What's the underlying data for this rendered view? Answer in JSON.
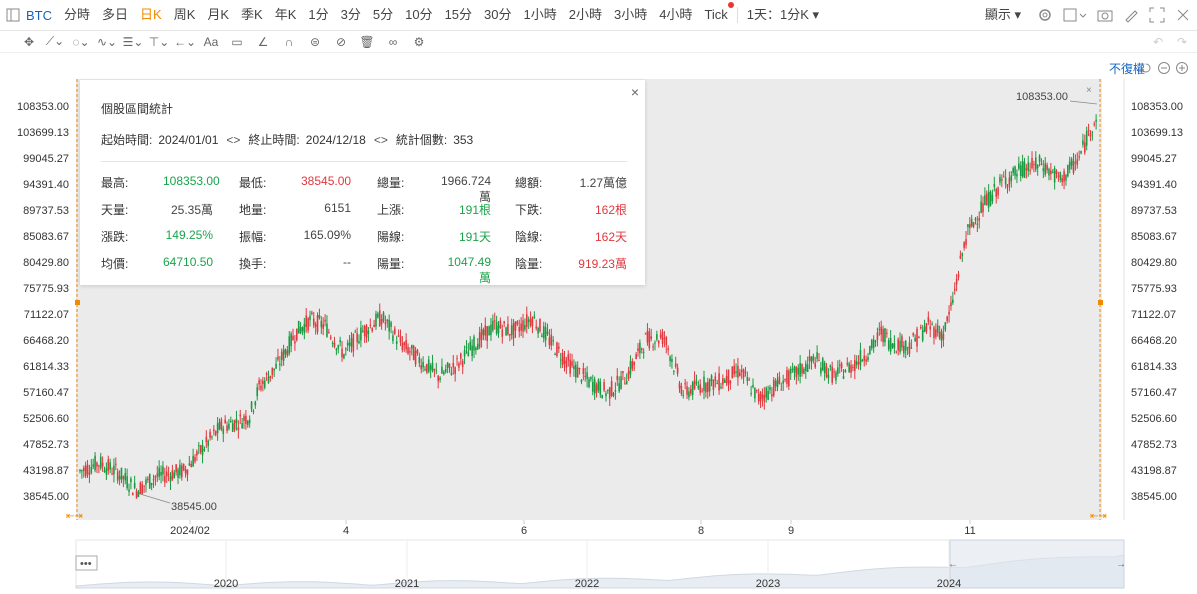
{
  "toolbar": {
    "symbol": "BTC",
    "timeframes": [
      "分時",
      "多日",
      "日K",
      "周K",
      "月K",
      "季K",
      "年K",
      "1分",
      "3分",
      "5分",
      "10分",
      "15分",
      "30分",
      "1小時",
      "2小時",
      "3小時",
      "4小時",
      "Tick"
    ],
    "active": "日K",
    "interval_select": "1天：1分K",
    "display_label": "顯示"
  },
  "restore_label": "不復權",
  "stats": {
    "title": "個股區間統計",
    "start_label": "起始時間:",
    "start": "2024/01/01",
    "end_label": "終止時間:",
    "end": "2024/12/18",
    "count_label": "統計個數:",
    "count": "353",
    "rows": [
      [
        [
          "最高:",
          "108353.00",
          "green"
        ],
        [
          "最低:",
          "38545.00",
          "red"
        ],
        [
          "總量:",
          "1966.724萬",
          "dark"
        ],
        [
          "總額:",
          "1.27萬億",
          "dark"
        ]
      ],
      [
        [
          "天量:",
          "25.35萬",
          "dark"
        ],
        [
          "地量:",
          "6151",
          "dark"
        ],
        [
          "上漲:",
          "191根",
          "green"
        ],
        [
          "下跌:",
          "162根",
          "red"
        ]
      ],
      [
        [
          "漲跌:",
          "149.25%",
          "green"
        ],
        [
          "振幅:",
          "165.09%",
          "dark"
        ],
        [
          "陽線:",
          "191天",
          "green"
        ],
        [
          "陰線:",
          "162天",
          "red"
        ]
      ],
      [
        [
          "均價:",
          "64710.50",
          "green"
        ],
        [
          "換手:",
          "--",
          "dark"
        ],
        [
          "陽量:",
          "1047.49萬",
          "green"
        ],
        [
          "陰量:",
          "919.23萬",
          "red"
        ]
      ]
    ]
  },
  "chart_data": {
    "type": "candlestick",
    "y_ticks": [
      "108353.00",
      "103699.13",
      "99045.27",
      "94391.40",
      "89737.53",
      "85083.67",
      "80429.80",
      "75775.93",
      "71122.07",
      "66468.20",
      "61814.33",
      "57160.47",
      "52506.60",
      "47852.73",
      "43198.87",
      "38545.00"
    ],
    "ylim": [
      38545,
      108353
    ],
    "x_ticks": [
      "2024/02",
      "4",
      "6",
      "8",
      "9",
      "11"
    ],
    "nav_ticks": [
      "2020",
      "2021",
      "2022",
      "2023",
      "2024"
    ],
    "high_annotation": "108353.00",
    "low_annotation": "38545.00",
    "anchors": [
      [
        0,
        43000
      ],
      [
        10,
        44500
      ],
      [
        20,
        42800
      ],
      [
        30,
        39500
      ],
      [
        40,
        42000
      ],
      [
        55,
        43000
      ],
      [
        65,
        47000
      ],
      [
        75,
        51000
      ],
      [
        85,
        52000
      ],
      [
        90,
        53000
      ],
      [
        95,
        58000
      ],
      [
        105,
        62000
      ],
      [
        115,
        68000
      ],
      [
        122,
        70000
      ],
      [
        130,
        69000
      ],
      [
        140,
        64000
      ],
      [
        150,
        68000
      ],
      [
        160,
        70500
      ],
      [
        170,
        66000
      ],
      [
        180,
        63000
      ],
      [
        190,
        60000
      ],
      [
        200,
        62000
      ],
      [
        210,
        66000
      ],
      [
        220,
        69000
      ],
      [
        230,
        68000
      ],
      [
        240,
        70500
      ],
      [
        250,
        66000
      ],
      [
        260,
        62000
      ],
      [
        270,
        59000
      ],
      [
        280,
        57000
      ],
      [
        290,
        60000
      ],
      [
        300,
        66500
      ],
      [
        310,
        67000
      ],
      [
        315,
        62000
      ],
      [
        320,
        57000
      ],
      [
        330,
        58500
      ],
      [
        340,
        59000
      ],
      [
        350,
        61000
      ],
      [
        360,
        56000
      ],
      [
        370,
        58500
      ],
      [
        380,
        60500
      ],
      [
        390,
        63000
      ],
      [
        400,
        60000
      ],
      [
        410,
        62000
      ],
      [
        420,
        65000
      ],
      [
        425,
        68000
      ],
      [
        430,
        66000
      ],
      [
        440,
        65500
      ],
      [
        450,
        69000
      ],
      [
        458,
        67500
      ],
      [
        462,
        72000
      ],
      [
        470,
        85000
      ],
      [
        478,
        90000
      ],
      [
        490,
        95000
      ],
      [
        500,
        97000
      ],
      [
        510,
        98000
      ],
      [
        520,
        95000
      ],
      [
        530,
        99000
      ],
      [
        538,
        106000
      ]
    ]
  }
}
